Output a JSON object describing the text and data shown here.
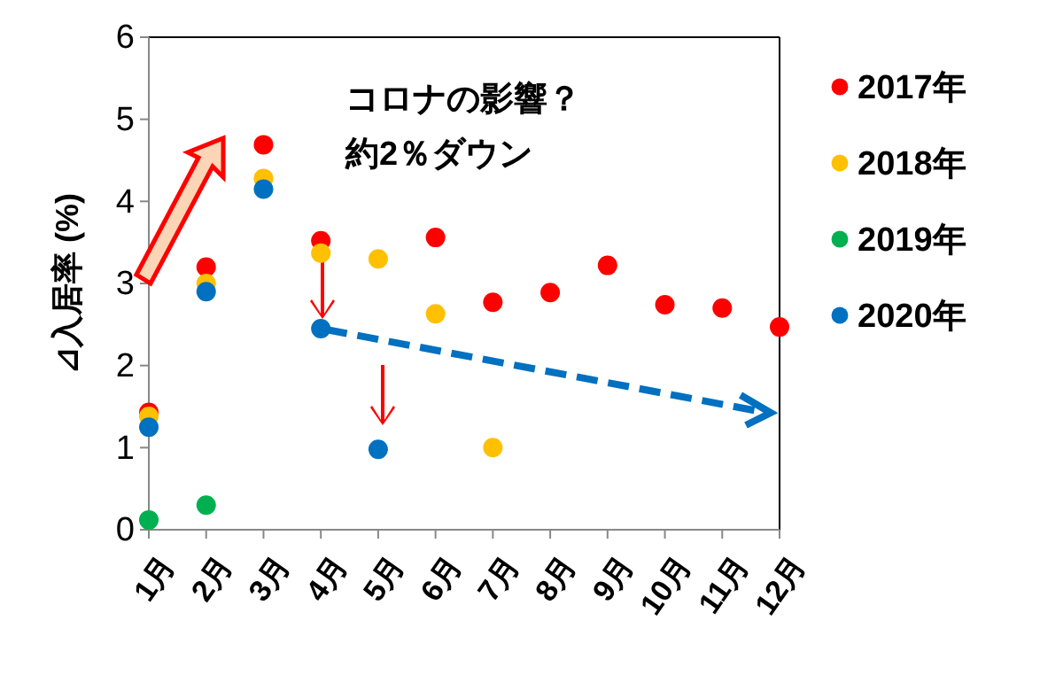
{
  "chart_data": {
    "type": "scatter",
    "ylabel": "⊿入居率 (%)",
    "categories": [
      "1月",
      "2月",
      "3月",
      "4月",
      "5月",
      "6月",
      "7月",
      "8月",
      "9月",
      "10月",
      "11月",
      "12月"
    ],
    "ylim": [
      0,
      6
    ],
    "yticks": [
      0,
      1,
      2,
      3,
      4,
      5,
      6
    ],
    "grid": false,
    "legend": "right",
    "marker": "circle",
    "annotations": [
      "コロナの影響？",
      "約2％ダウン"
    ],
    "series": [
      {
        "name": "2017年",
        "color": "#ff0000",
        "values": [
          1.43,
          3.2,
          4.69,
          3.52,
          null,
          3.56,
          2.77,
          2.89,
          3.22,
          2.74,
          2.7,
          2.47
        ]
      },
      {
        "name": "2018年",
        "color": "#ffc000",
        "values": [
          1.38,
          3.0,
          4.28,
          3.37,
          3.3,
          2.63,
          1.0,
          null,
          null,
          null,
          null,
          null
        ]
      },
      {
        "name": "2019年",
        "color": "#00b050",
        "values": [
          0.12,
          0.3,
          null,
          null,
          null,
          null,
          null,
          null,
          null,
          null,
          null,
          null
        ]
      },
      {
        "name": "2020年",
        "color": "#0070c0",
        "values": [
          1.25,
          2.9,
          4.15,
          2.45,
          0.98,
          null,
          null,
          null,
          null,
          null,
          null,
          null
        ]
      }
    ]
  }
}
